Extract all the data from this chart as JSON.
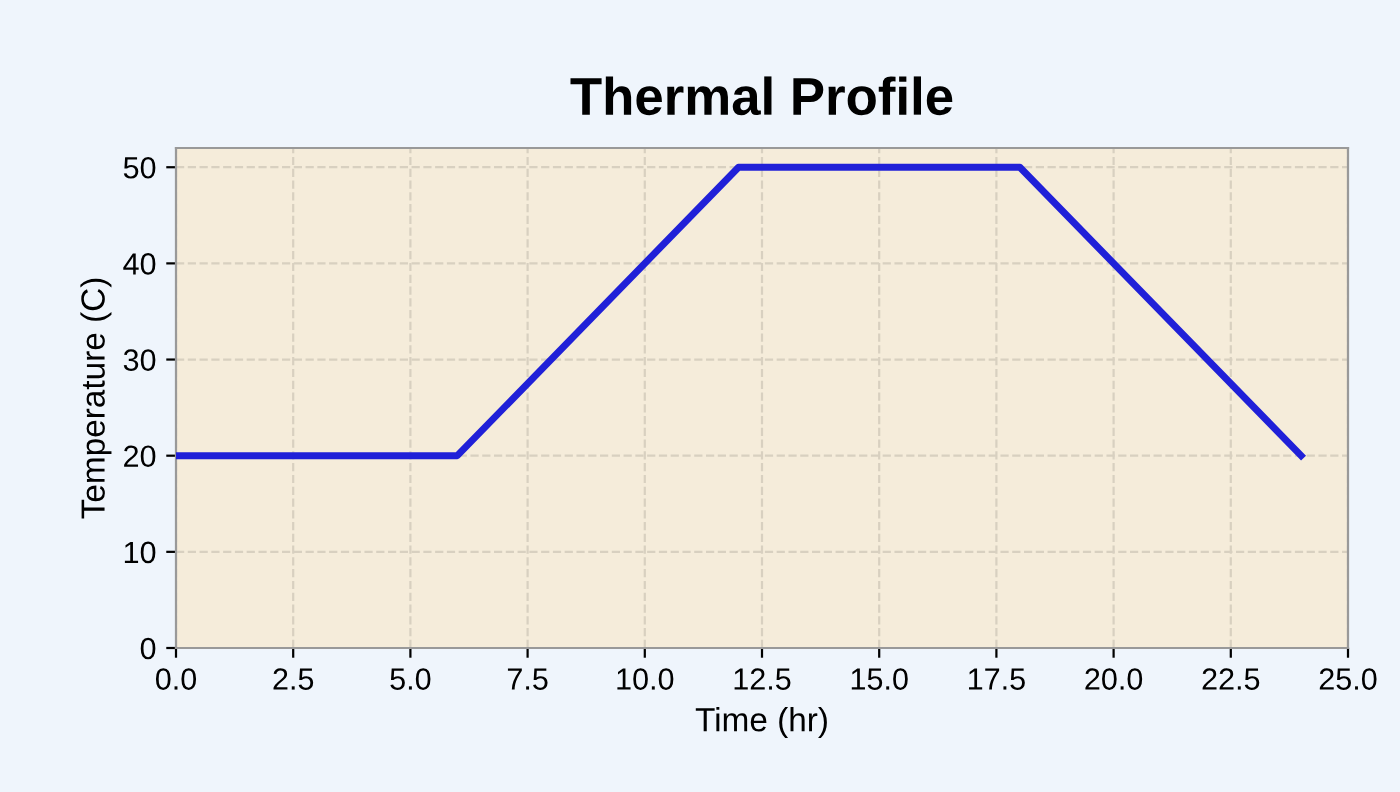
{
  "chart_data": {
    "type": "line",
    "title": "Thermal Profile",
    "xlabel": "Time (hr)",
    "ylabel": "Temperature (C)",
    "x": [
      0,
      6,
      12,
      18,
      24
    ],
    "series": [
      {
        "color": "#2020d8",
        "values": [
          20,
          20,
          50,
          50,
          20
        ]
      }
    ],
    "xlim": [
      0,
      25
    ],
    "ylim": [
      0,
      52
    ],
    "xticks": [
      {
        "value": 0,
        "label": "0.0"
      },
      2.5,
      {
        "value": 5,
        "label": "5.0"
      },
      7.5,
      {
        "value": 10,
        "label": "10.0"
      },
      12.5,
      {
        "value": 15,
        "label": "15.0"
      },
      17.5,
      {
        "value": 20,
        "label": "20.0"
      },
      22.5,
      {
        "value": 25,
        "label": "25.0"
      }
    ],
    "yticks": [
      0,
      10,
      20,
      30,
      40,
      50
    ],
    "grid": true,
    "line_style": "solid",
    "marker": "none"
  }
}
